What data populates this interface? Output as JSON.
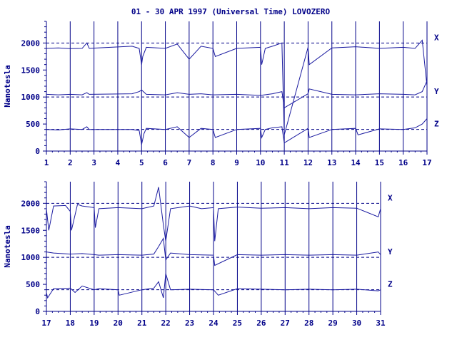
{
  "colors": {
    "ink": "#000088",
    "trace": "#1a1aa0",
    "background": "#ffffff"
  },
  "chart_data": [
    {
      "type": "line",
      "title": "01 - 30 APR 1997 (Universal Time) LOVOZERO",
      "ylabel": "Nanotesla",
      "xlim": [
        1,
        17
      ],
      "ylim": [
        0,
        2400
      ],
      "xticks": [
        1,
        2,
        3,
        4,
        5,
        6,
        7,
        8,
        9,
        10,
        11,
        12,
        13,
        14,
        15,
        16,
        17
      ],
      "yticks": [
        0,
        500,
        1000,
        1500,
        2000
      ],
      "reference_lines": [
        2000,
        1000,
        400
      ],
      "grid": "vertical-at-days",
      "series": [
        {
          "name": "X",
          "x": [
            1,
            1.5,
            2,
            2.5,
            2.7,
            2.8,
            4.6,
            4.9,
            5.0,
            5.05,
            5.2,
            6,
            6.5,
            7,
            7.5,
            8,
            8.1,
            9,
            10,
            10.05,
            10.2,
            10.5,
            10.9,
            11,
            12,
            12.05,
            13,
            14,
            15,
            16,
            16.5,
            16.8,
            17
          ],
          "y": [
            1900,
            1910,
            1895,
            1900,
            2000,
            1900,
            1940,
            1900,
            1600,
            1750,
            1920,
            1900,
            1980,
            1700,
            1940,
            1900,
            1750,
            1900,
            1920,
            1600,
            1900,
            1940,
            2000,
            300,
            1920,
            1600,
            1910,
            1930,
            1900,
            1920,
            1900,
            2050,
            1200
          ]
        },
        {
          "name": "Y",
          "x": [
            1,
            1.5,
            2,
            2.5,
            2.7,
            2.8,
            4.6,
            4.9,
            5.0,
            5.2,
            6,
            6.5,
            7,
            7.5,
            8,
            9,
            10,
            10.5,
            10.9,
            11,
            12,
            12.05,
            13,
            14,
            15,
            16,
            16.5,
            16.8,
            17
          ],
          "y": [
            1050,
            1040,
            1050,
            1040,
            1080,
            1050,
            1060,
            1100,
            1130,
            1050,
            1040,
            1080,
            1050,
            1060,
            1040,
            1050,
            1030,
            1060,
            1100,
            800,
            1060,
            1150,
            1050,
            1040,
            1060,
            1050,
            1040,
            1100,
            1300
          ]
        },
        {
          "name": "Z",
          "x": [
            1,
            1.5,
            2,
            2.5,
            2.7,
            2.8,
            4.6,
            4.9,
            5.0,
            5.1,
            5.2,
            6,
            6.5,
            7,
            7.5,
            8,
            8.1,
            9,
            10,
            10.05,
            10.2,
            10.5,
            10.9,
            11,
            12,
            12.05,
            13,
            14,
            14.1,
            15,
            16,
            16.5,
            16.8,
            17
          ],
          "y": [
            400,
            390,
            410,
            400,
            450,
            400,
            400,
            380,
            120,
            320,
            420,
            400,
            450,
            250,
            420,
            400,
            250,
            400,
            420,
            250,
            400,
            430,
            450,
            150,
            420,
            250,
            400,
            420,
            300,
            410,
            400,
            430,
            500,
            600
          ]
        }
      ],
      "component_labels": [
        "X",
        "Y",
        "Z"
      ]
    },
    {
      "type": "line",
      "title": "",
      "ylabel": "Nanotesla",
      "xlim": [
        17,
        31
      ],
      "ylim": [
        0,
        2400
      ],
      "xticks": [
        17,
        18,
        19,
        20,
        21,
        22,
        23,
        24,
        25,
        26,
        27,
        28,
        29,
        30,
        31
      ],
      "yticks": [
        0,
        500,
        1000,
        1500,
        2000
      ],
      "reference_lines": [
        2000,
        1000,
        400
      ],
      "grid": "vertical-at-days",
      "series": [
        {
          "name": "X",
          "x": [
            17,
            17.1,
            17.3,
            17.8,
            18,
            18.05,
            18.3,
            18.5,
            19,
            19.05,
            19.2,
            20,
            21,
            21.5,
            21.7,
            21.9,
            22,
            22.2,
            23,
            23.5,
            24,
            24.05,
            24.2,
            25,
            26,
            27,
            28,
            29,
            30,
            30.9,
            31
          ],
          "y": [
            1900,
            1500,
            1950,
            1960,
            1850,
            1500,
            1980,
            1950,
            1920,
            1550,
            1900,
            1920,
            1900,
            1950,
            2300,
            1600,
            1300,
            1900,
            1950,
            1900,
            1920,
            1300,
            1900,
            1930,
            1910,
            1920,
            1900,
            1920,
            1910,
            1750,
            1900
          ]
        },
        {
          "name": "Y",
          "x": [
            17,
            17.3,
            18,
            18.5,
            19,
            19.2,
            20,
            21,
            21.5,
            21.7,
            21.9,
            22,
            22.2,
            23,
            24,
            24.05,
            25,
            26,
            27,
            28,
            29,
            30,
            30.9,
            31
          ],
          "y": [
            1100,
            1080,
            1060,
            1070,
            1050,
            1040,
            1050,
            1040,
            1060,
            1200,
            1350,
            950,
            1080,
            1050,
            1040,
            850,
            1050,
            1040,
            1050,
            1040,
            1050,
            1040,
            1100,
            1050
          ]
        },
        {
          "name": "Z",
          "x": [
            17,
            17.05,
            17.3,
            18,
            18.2,
            18.5,
            19,
            19.2,
            20,
            20.05,
            21,
            21.5,
            21.7,
            21.9,
            22,
            22.2,
            23,
            24,
            24.2,
            25,
            26,
            27,
            28,
            29,
            30,
            30.9,
            31
          ],
          "y": [
            350,
            250,
            420,
            430,
            350,
            470,
            400,
            420,
            400,
            300,
            400,
            430,
            550,
            250,
            700,
            400,
            410,
            400,
            300,
            420,
            410,
            400,
            410,
            400,
            410,
            380,
            400
          ]
        }
      ],
      "component_labels": [
        "X",
        "Y",
        "Z"
      ]
    }
  ]
}
